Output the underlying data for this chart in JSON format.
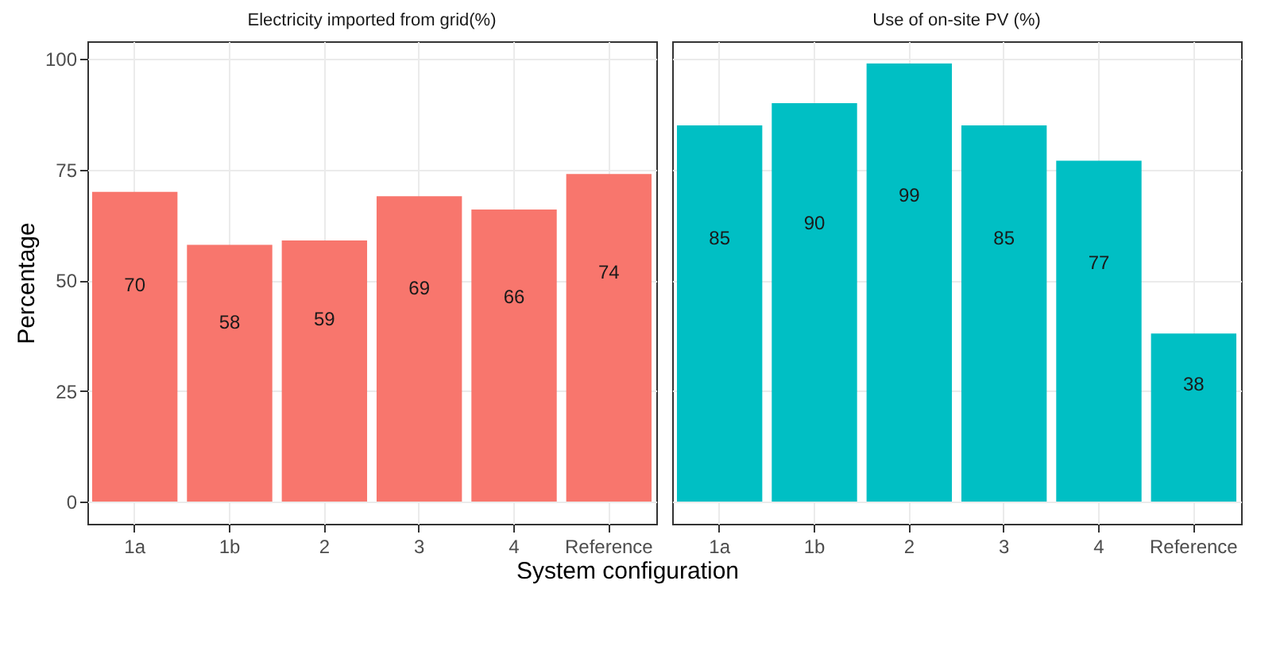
{
  "chart_data": [
    {
      "type": "bar",
      "title": "Electricity imported from grid(%)",
      "xlabel": "System configuration",
      "ylabel": "Percentage",
      "categories": [
        "1a",
        "1b",
        "2",
        "3",
        "4",
        "Reference"
      ],
      "values": [
        70,
        58,
        59,
        69,
        66,
        74
      ],
      "color": "#f8766d",
      "ylim": [
        -5,
        104
      ],
      "yticks": [
        0,
        25,
        50,
        75,
        100
      ],
      "grid": true,
      "data_labels": true
    },
    {
      "type": "bar",
      "title": "Use of on-site PV (%)",
      "categories": [
        "1a",
        "1b",
        "2",
        "3",
        "4",
        "Reference"
      ],
      "values": [
        85,
        90,
        99,
        85,
        77,
        38
      ],
      "color": "#00bfc4",
      "ylim": [
        -5,
        104
      ],
      "yticks": [
        0,
        25,
        50,
        75,
        100
      ],
      "grid": true,
      "data_labels": true,
      "tick_labels": "x"
    }
  ]
}
